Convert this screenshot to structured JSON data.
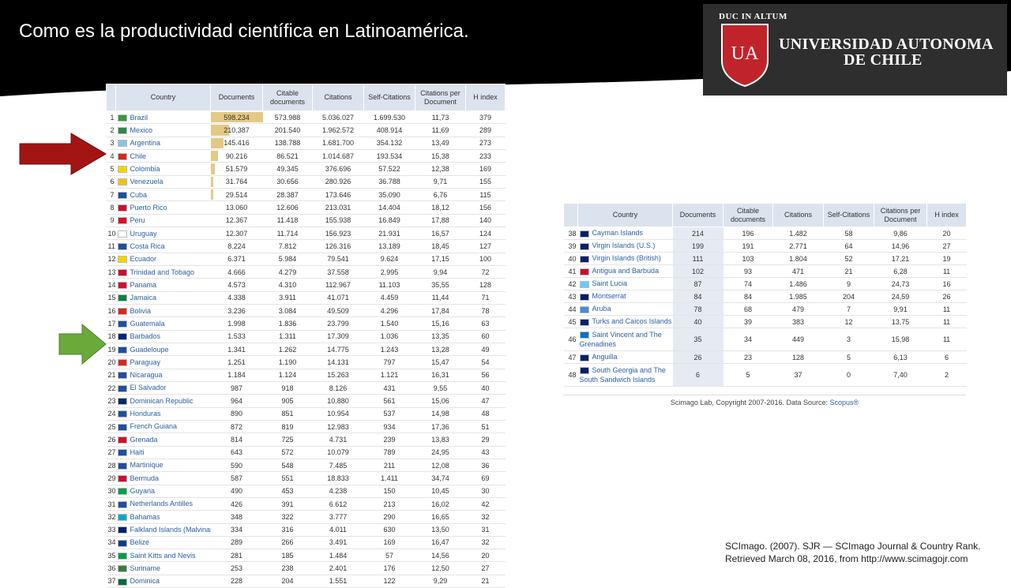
{
  "slide": {
    "title": "Como es la productividad científica en Latinoamérica.",
    "logo": {
      "motto": "DUC IN ALTUM",
      "shield_text": "UA",
      "name_line1": "UNIVERSIDAD AUTONOMA",
      "name_line2": "DE CHILE"
    },
    "citation_line1": "SCImago. (2007). SJR — SCImago Journal & Country Rank.",
    "citation_line2": "Retrieved March 08, 2016, from http://www.scimagojr.com"
  },
  "colors": {
    "banner": "#000000",
    "red_arrow": "#a31515",
    "green_arrow": "#6aaa3a",
    "doc_bar": "#e4c985",
    "header_bg": "#dbe3ee",
    "link": "#2b5fa0"
  },
  "table_headers": {
    "country": "Country",
    "documents": "Documents",
    "citable": "Citable documents",
    "citations": "Citations",
    "self_citations": "Self-Citations",
    "cpd": "Citations per Document",
    "h_index": "H index"
  },
  "table_a": {
    "rows": [
      {
        "rank": "1",
        "country": "Brazil",
        "documents": "598.234",
        "bar": 1.0,
        "citable": "573.988",
        "citations": "5.036.027",
        "self": "1.699.530",
        "cpd": "11,73",
        "h": "379"
      },
      {
        "rank": "2",
        "country": "Mexico",
        "documents": "210.387",
        "bar": 0.352,
        "citable": "201.540",
        "citations": "1.962.572",
        "self": "408.914",
        "cpd": "11,69",
        "h": "289"
      },
      {
        "rank": "3",
        "country": "Argentina",
        "documents": "145.416",
        "bar": 0.243,
        "citable": "138.788",
        "citations": "1.681.700",
        "self": "354.132",
        "cpd": "13,49",
        "h": "273"
      },
      {
        "rank": "4",
        "country": "Chile",
        "documents": "90.216",
        "bar": 0.151,
        "citable": "86.521",
        "citations": "1.014.687",
        "self": "193.534",
        "cpd": "15,38",
        "h": "233"
      },
      {
        "rank": "5",
        "country": "Colombia",
        "documents": "51.579",
        "bar": 0.086,
        "citable": "49.345",
        "citations": "376.696",
        "self": "57.522",
        "cpd": "12,38",
        "h": "169"
      },
      {
        "rank": "6",
        "country": "Venezuela",
        "documents": "31.764",
        "bar": 0.053,
        "citable": "30.656",
        "citations": "280.926",
        "self": "36.788",
        "cpd": "9,71",
        "h": "155"
      },
      {
        "rank": "7",
        "country": "Cuba",
        "documents": "29.514",
        "bar": 0.049,
        "citable": "28.387",
        "citations": "173.646",
        "self": "35.090",
        "cpd": "6,76",
        "h": "115"
      },
      {
        "rank": "8",
        "country": "Puerto Rico",
        "documents": "13.060",
        "bar": 0.0,
        "citable": "12.606",
        "citations": "213.031",
        "self": "14.404",
        "cpd": "18,12",
        "h": "156"
      },
      {
        "rank": "9",
        "country": "Peru",
        "documents": "12.367",
        "bar": 0.0,
        "citable": "11.418",
        "citations": "155.938",
        "self": "16.849",
        "cpd": "17,88",
        "h": "140"
      },
      {
        "rank": "10",
        "country": "Uruguay",
        "documents": "12.307",
        "bar": 0.0,
        "citable": "11.714",
        "citations": "156.923",
        "self": "21.931",
        "cpd": "16,57",
        "h": "124"
      },
      {
        "rank": "11",
        "country": "Costa Rica",
        "documents": "8.224",
        "bar": 0.0,
        "citable": "7.812",
        "citations": "126.316",
        "self": "13.189",
        "cpd": "18,45",
        "h": "127"
      },
      {
        "rank": "12",
        "country": "Ecuador",
        "documents": "6.371",
        "bar": 0.0,
        "citable": "5.984",
        "citations": "79.541",
        "self": "9.624",
        "cpd": "17,15",
        "h": "100"
      },
      {
        "rank": "13",
        "country": "Trinidad and Tobago",
        "documents": "4.666",
        "bar": 0.0,
        "citable": "4.279",
        "citations": "37.558",
        "self": "2.995",
        "cpd": "9,94",
        "h": "72"
      },
      {
        "rank": "14",
        "country": "Panama",
        "documents": "4.573",
        "bar": 0.0,
        "citable": "4.310",
        "citations": "112.967",
        "self": "11.103",
        "cpd": "35,55",
        "h": "128"
      },
      {
        "rank": "15",
        "country": "Jamaica",
        "documents": "4.338",
        "bar": 0.0,
        "citable": "3.911",
        "citations": "41.071",
        "self": "4.459",
        "cpd": "11,44",
        "h": "71"
      },
      {
        "rank": "16",
        "country": "Bolivia",
        "documents": "3.236",
        "bar": 0.0,
        "citable": "3.084",
        "citations": "49.509",
        "self": "4.296",
        "cpd": "17,84",
        "h": "78"
      },
      {
        "rank": "17",
        "country": "Guatemala",
        "documents": "1.998",
        "bar": 0.0,
        "citable": "1.836",
        "citations": "23.799",
        "self": "1.540",
        "cpd": "15,16",
        "h": "63"
      },
      {
        "rank": "18",
        "country": "Barbados",
        "documents": "1.533",
        "bar": 0.0,
        "citable": "1.311",
        "citations": "17.309",
        "self": "1.036",
        "cpd": "13,35",
        "h": "60"
      },
      {
        "rank": "19",
        "country": "Guadeloupe",
        "documents": "1.341",
        "bar": 0.0,
        "citable": "1.262",
        "citations": "14.775",
        "self": "1.243",
        "cpd": "13,28",
        "h": "49"
      },
      {
        "rank": "20",
        "country": "Paraguay",
        "documents": "1.251",
        "bar": 0.0,
        "citable": "1.190",
        "citations": "14.131",
        "self": "797",
        "cpd": "15,47",
        "h": "54"
      },
      {
        "rank": "21",
        "country": "Nicaragua",
        "documents": "1.184",
        "bar": 0.0,
        "citable": "1.124",
        "citations": "15.263",
        "self": "1.121",
        "cpd": "16,31",
        "h": "56"
      },
      {
        "rank": "22",
        "country": "El Salvador",
        "documents": "987",
        "bar": 0.0,
        "citable": "918",
        "citations": "8.126",
        "self": "431",
        "cpd": "9,55",
        "h": "40"
      },
      {
        "rank": "23",
        "country": "Dominican Republic",
        "documents": "964",
        "bar": 0.0,
        "citable": "905",
        "citations": "10.880",
        "self": "561",
        "cpd": "15,06",
        "h": "47"
      },
      {
        "rank": "24",
        "country": "Honduras",
        "documents": "890",
        "bar": 0.0,
        "citable": "851",
        "citations": "10.954",
        "self": "537",
        "cpd": "14,98",
        "h": "48"
      },
      {
        "rank": "25",
        "country": "French Guiana",
        "documents": "872",
        "bar": 0.0,
        "citable": "819",
        "citations": "12.983",
        "self": "934",
        "cpd": "17,36",
        "h": "51"
      },
      {
        "rank": "26",
        "country": "Grenada",
        "documents": "814",
        "bar": 0.0,
        "citable": "725",
        "citations": "4.731",
        "self": "239",
        "cpd": "13,83",
        "h": "29"
      },
      {
        "rank": "27",
        "country": "Haiti",
        "documents": "643",
        "bar": 0.0,
        "citable": "572",
        "citations": "10.079",
        "self": "789",
        "cpd": "24,95",
        "h": "43"
      },
      {
        "rank": "28",
        "country": "Martinique",
        "documents": "590",
        "bar": 0.0,
        "citable": "548",
        "citations": "7.485",
        "self": "211",
        "cpd": "12,08",
        "h": "36"
      },
      {
        "rank": "29",
        "country": "Bermuda",
        "documents": "587",
        "bar": 0.0,
        "citable": "551",
        "citations": "18.833",
        "self": "1.411",
        "cpd": "34,74",
        "h": "69"
      },
      {
        "rank": "30",
        "country": "Guyana",
        "documents": "490",
        "bar": 0.0,
        "citable": "453",
        "citations": "4.238",
        "self": "150",
        "cpd": "10,45",
        "h": "30"
      },
      {
        "rank": "31",
        "country": "Netherlands Antilles",
        "documents": "426",
        "bar": 0.0,
        "citable": "391",
        "citations": "6.612",
        "self": "213",
        "cpd": "16,02",
        "h": "42"
      },
      {
        "rank": "32",
        "country": "Bahamas",
        "documents": "348",
        "bar": 0.0,
        "citable": "322",
        "citations": "3.777",
        "self": "290",
        "cpd": "16,65",
        "h": "32"
      },
      {
        "rank": "33",
        "country": "Falkland Islands (Malvinas)",
        "documents": "334",
        "bar": 0.0,
        "citable": "316",
        "citations": "4.011",
        "self": "630",
        "cpd": "13,50",
        "h": "31"
      },
      {
        "rank": "34",
        "country": "Belize",
        "documents": "289",
        "bar": 0.0,
        "citable": "266",
        "citations": "3.491",
        "self": "169",
        "cpd": "16,47",
        "h": "32"
      },
      {
        "rank": "35",
        "country": "Saint Kitts and Nevis",
        "documents": "281",
        "bar": 0.0,
        "citable": "185",
        "citations": "1.484",
        "self": "57",
        "cpd": "14,56",
        "h": "20"
      },
      {
        "rank": "36",
        "country": "Suriname",
        "documents": "253",
        "bar": 0.0,
        "citable": "238",
        "citations": "2.401",
        "self": "176",
        "cpd": "12,50",
        "h": "27"
      },
      {
        "rank": "37",
        "country": "Dominica",
        "documents": "228",
        "bar": 0.0,
        "citable": "204",
        "citations": "1.551",
        "self": "122",
        "cpd": "9,29",
        "h": "21"
      }
    ]
  },
  "table_b": {
    "rows": [
      {
        "rank": "38",
        "country": "Cayman Islands",
        "documents": "214",
        "citable": "196",
        "citations": "1.482",
        "self": "58",
        "cpd": "9,86",
        "h": "20"
      },
      {
        "rank": "39",
        "country": "Virgin Islands (U.S.)",
        "documents": "199",
        "citable": "191",
        "citations": "2.771",
        "self": "64",
        "cpd": "14,96",
        "h": "27"
      },
      {
        "rank": "40",
        "country": "Virgin Islands (British)",
        "documents": "111",
        "citable": "103",
        "citations": "1.804",
        "self": "52",
        "cpd": "17,21",
        "h": "19"
      },
      {
        "rank": "41",
        "country": "Antigua and Barbuda",
        "documents": "102",
        "citable": "93",
        "citations": "471",
        "self": "21",
        "cpd": "6,28",
        "h": "11"
      },
      {
        "rank": "42",
        "country": "Saint Lucia",
        "documents": "87",
        "citable": "74",
        "citations": "1.486",
        "self": "9",
        "cpd": "24,73",
        "h": "16"
      },
      {
        "rank": "43",
        "country": "Montserrat",
        "documents": "84",
        "citable": "84",
        "citations": "1.985",
        "self": "204",
        "cpd": "24,59",
        "h": "26"
      },
      {
        "rank": "44",
        "country": "Aruba",
        "documents": "78",
        "citable": "68",
        "citations": "479",
        "self": "7",
        "cpd": "9,91",
        "h": "11"
      },
      {
        "rank": "45",
        "country": "Turks and Caicos Islands",
        "documents": "40",
        "citable": "39",
        "citations": "383",
        "self": "12",
        "cpd": "13,75",
        "h": "11"
      },
      {
        "rank": "46",
        "country": "Saint Vincent and The Grenadines",
        "documents": "35",
        "citable": "34",
        "citations": "449",
        "self": "3",
        "cpd": "15,98",
        "h": "11"
      },
      {
        "rank": "47",
        "country": "Anguilla",
        "documents": "26",
        "citable": "23",
        "citations": "128",
        "self": "5",
        "cpd": "6,13",
        "h": "6"
      },
      {
        "rank": "48",
        "country": "South Georgia and The South Sandwich Islands",
        "documents": "6",
        "citable": "5",
        "citations": "37",
        "self": "0",
        "cpd": "7,40",
        "h": "2"
      }
    ],
    "footer_text": "Scimago Lab, Copyright 2007-2016. Data Source: ",
    "footer_link": "Scopus®"
  },
  "flags": [
    "#3a9a3a",
    "#2f8a4a",
    "#8fc0e6",
    "#d52b1e",
    "#f6d300",
    "#f2c300",
    "#1d4fa0",
    "#c8102e",
    "#d91023",
    "#ffffff",
    "#1d4fa0",
    "#f6d300",
    "#c8102e",
    "#d21034",
    "#00843d",
    "#d52b1e",
    "#1d4fa0",
    "#00267f",
    "#1d4fa0",
    "#d52b1e",
    "#1d4fa0",
    "#1d4fa0",
    "#002d62",
    "#1d4fa0",
    "#1d4fa0",
    "#ce1126",
    "#1d4fa0",
    "#1d4fa0",
    "#c8102e",
    "#009e49",
    "#1d4fa0",
    "#00abc9",
    "#012169",
    "#003f87",
    "#009e49",
    "#377e3f",
    "#006b3f",
    "#012169",
    "#012169",
    "#012169",
    "#c8102e",
    "#66ccff",
    "#012169",
    "#418fde",
    "#012169",
    "#0072c6",
    "#012169",
    "#012169"
  ]
}
